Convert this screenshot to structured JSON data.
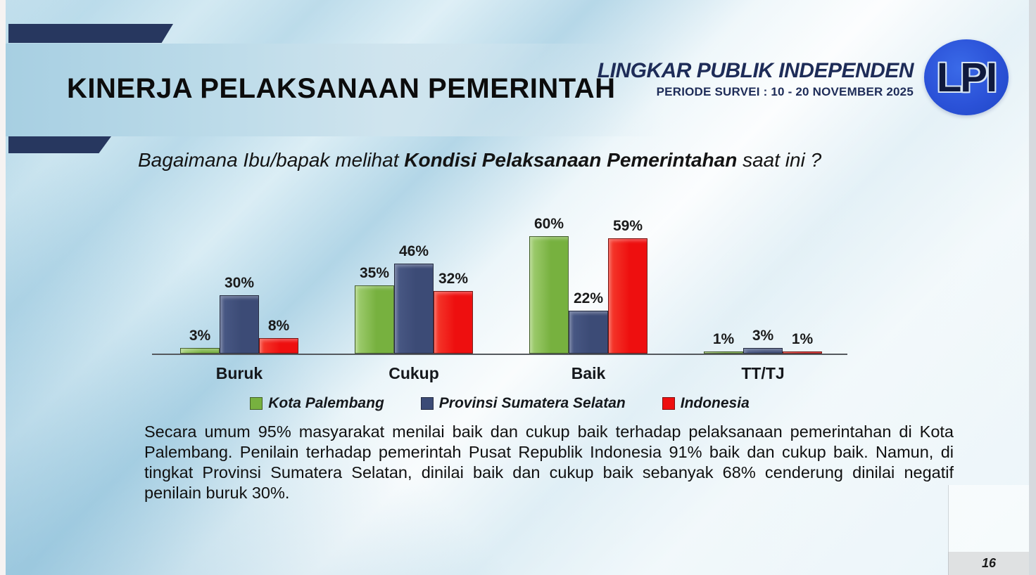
{
  "slide": {
    "title": "KINERJA PELAKSANAAN PEMERINTAH",
    "page_number": "16"
  },
  "header": {
    "org_name": "LINGKAR PUBLIK INDEPENDEN",
    "survey_period": "PERIODE SURVEI : 10 - 20 NOVEMBER 2025",
    "logo_text": "LPI",
    "logo_color": "#2b52d8",
    "accent_navy": "#27375f"
  },
  "question": {
    "prefix": "Bagaimana Ibu/bapak melihat ",
    "emphasis": "Kondisi Pelaksanaan Pemerintahan",
    "suffix": " saat ini ?"
  },
  "chart_data": {
    "type": "bar",
    "categories": [
      "Buruk",
      "Cukup",
      "Baik",
      "TT/TJ"
    ],
    "series": [
      {
        "name": "Kota Palembang",
        "color": "#77b13f",
        "color_light": "#a3cf74",
        "values": [
          3,
          35,
          60,
          1
        ]
      },
      {
        "name": "Provinsi Sumatera Selatan",
        "color": "#3c4b76",
        "color_light": "#4a5a86",
        "values": [
          30,
          46,
          22,
          3
        ]
      },
      {
        "name": "Indonesia",
        "color": "#ee0f0f",
        "color_light": "#f53c2e",
        "values": [
          8,
          32,
          59,
          1
        ]
      }
    ],
    "value_suffix": "%",
    "ylim": [
      0,
      65
    ],
    "grid": false,
    "legend_position": "bottom",
    "axis_color": "#55595e"
  },
  "summary": {
    "text": "Secara umum 95% masyarakat menilai baik dan cukup baik terhadap pelaksanaan pemerintahan di Kota Palembang. Penilain terhadap pemerintah Pusat Republik Indonesia 91% baik dan cukup baik. Namun, di tingkat Provinsi Sumatera Selatan, dinilai baik dan cukup baik sebanyak 68% cenderung dinilai negatif penilain buruk 30%."
  }
}
